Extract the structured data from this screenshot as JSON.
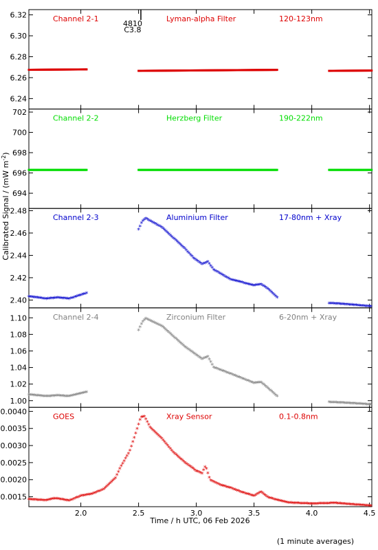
{
  "figure": {
    "ylabel": "Calibrated Signal / (mW m",
    "ylabel_sup": "-2",
    "ylabel_end": ")",
    "xlabel": "Time / h UTC, 06 Feb 2026",
    "footnote": "(1 minute averages)",
    "marker_top": "4810",
    "marker_bottom": "C3.8",
    "marker_x": 2.52
  },
  "chart_data": [
    {
      "type": "scatter",
      "channel": "Channel 2-1",
      "filter": "Lyman-alpha Filter",
      "band": "120-123nm",
      "color": "#dd0000",
      "marker": "dot",
      "shape": "flat",
      "xlim": [
        1.55,
        4.52
      ],
      "ylim": [
        6.23,
        6.325
      ],
      "yticks": [
        6.24,
        6.26,
        6.28,
        6.3,
        6.32
      ],
      "ydecimals": 2,
      "segments": [
        [
          1.55,
          2.05
        ],
        [
          2.5,
          3.7
        ],
        [
          4.15,
          4.52
        ]
      ],
      "levels": [
        6.2675,
        6.2665,
        6.2665
      ],
      "slope": 0.0008
    },
    {
      "type": "scatter",
      "channel": "Channel 2-2",
      "filter": "Herzberg Filter",
      "band": "190-222nm",
      "color": "#00dd00",
      "marker": "dot",
      "shape": "flat",
      "xlim": [
        1.55,
        4.52
      ],
      "ylim": [
        692.5,
        702.3
      ],
      "yticks": [
        694,
        696,
        698,
        700,
        702
      ],
      "ydecimals": 0,
      "segments": [
        [
          1.55,
          2.05
        ],
        [
          2.5,
          3.7
        ],
        [
          4.15,
          4.52
        ]
      ],
      "levels": [
        696.3,
        696.3,
        696.3
      ],
      "slope": 0
    },
    {
      "type": "scatter",
      "channel": "Channel 2-3",
      "filter": "Aluminium Filter",
      "band": "17-80nm + Xray",
      "color": "#0000cc",
      "marker": "star",
      "shape": "flare",
      "xlim": [
        1.55,
        4.52
      ],
      "ylim": [
        2.393,
        2.482
      ],
      "yticks": [
        2.4,
        2.42,
        2.44,
        2.46,
        2.48
      ],
      "ydecimals": 2,
      "segments": [
        [
          1.55,
          2.05
        ],
        [
          2.5,
          3.7
        ],
        [
          4.15,
          4.52
        ]
      ],
      "pre": [
        [
          1.55,
          2.403
        ],
        [
          1.7,
          2.401
        ],
        [
          1.8,
          2.402
        ],
        [
          1.9,
          2.401
        ],
        [
          2.05,
          2.406
        ]
      ],
      "flare": [
        [
          2.5,
          2.463
        ],
        [
          2.53,
          2.47
        ],
        [
          2.56,
          2.473
        ],
        [
          2.7,
          2.465
        ],
        [
          2.9,
          2.446
        ],
        [
          2.98,
          2.437
        ],
        [
          3.05,
          2.432
        ],
        [
          3.1,
          2.434
        ],
        [
          3.15,
          2.427
        ],
        [
          3.3,
          2.418
        ],
        [
          3.5,
          2.413
        ],
        [
          3.56,
          2.414
        ],
        [
          3.62,
          2.41
        ],
        [
          3.7,
          2.402
        ]
      ],
      "post": [
        [
          4.15,
          2.397
        ],
        [
          4.3,
          2.396
        ],
        [
          4.52,
          2.394
        ]
      ]
    },
    {
      "type": "scatter",
      "channel": "Channel 2-4",
      "filter": "Zirconium Filter",
      "band": "6-20nm + Xray",
      "color": "#808080",
      "marker": "star",
      "shape": "flare",
      "xlim": [
        1.55,
        4.52
      ],
      "ylim": [
        0.992,
        1.112
      ],
      "yticks": [
        1.0,
        1.02,
        1.04,
        1.06,
        1.08,
        1.1
      ],
      "ydecimals": 2,
      "segments": [
        [
          1.55,
          2.05
        ],
        [
          2.5,
          3.7
        ],
        [
          4.15,
          4.52
        ]
      ],
      "pre": [
        [
          1.55,
          1.007
        ],
        [
          1.7,
          1.005
        ],
        [
          1.8,
          1.006
        ],
        [
          1.9,
          1.005
        ],
        [
          2.05,
          1.01
        ]
      ],
      "flare": [
        [
          2.5,
          1.085
        ],
        [
          2.53,
          1.094
        ],
        [
          2.56,
          1.099
        ],
        [
          2.7,
          1.09
        ],
        [
          2.9,
          1.065
        ],
        [
          2.98,
          1.057
        ],
        [
          3.05,
          1.05
        ],
        [
          3.1,
          1.053
        ],
        [
          3.15,
          1.04
        ],
        [
          3.3,
          1.032
        ],
        [
          3.5,
          1.021
        ],
        [
          3.56,
          1.022
        ],
        [
          3.62,
          1.015
        ],
        [
          3.7,
          1.005
        ]
      ],
      "post": [
        [
          4.15,
          0.998
        ],
        [
          4.3,
          0.997
        ],
        [
          4.52,
          0.995
        ]
      ]
    },
    {
      "type": "scatter",
      "channel": "GOES",
      "filter": "Xray Sensor",
      "band": "0.1-0.8nm",
      "color": "#dd0000",
      "marker": "star",
      "shape": "continuous",
      "xlim": [
        1.55,
        4.52
      ],
      "ylim": [
        0.00121,
        0.00412
      ],
      "yticks": [
        0.0015,
        0.002,
        0.0025,
        0.003,
        0.0035,
        0.004
      ],
      "ydecimals": 4,
      "xticks": [
        2.0,
        2.5,
        3.0,
        3.5,
        4.0,
        4.5
      ],
      "xdecimals": 1,
      "curve": [
        [
          1.55,
          0.00142
        ],
        [
          1.7,
          0.00139
        ],
        [
          1.78,
          0.00145
        ],
        [
          1.9,
          0.00138
        ],
        [
          2.0,
          0.00152
        ],
        [
          2.1,
          0.00158
        ],
        [
          2.2,
          0.00172
        ],
        [
          2.3,
          0.00205
        ],
        [
          2.35,
          0.0024
        ],
        [
          2.42,
          0.0028
        ],
        [
          2.47,
          0.0033
        ],
        [
          2.52,
          0.00382
        ],
        [
          2.55,
          0.00385
        ],
        [
          2.6,
          0.00352
        ],
        [
          2.7,
          0.0032
        ],
        [
          2.8,
          0.0028
        ],
        [
          2.9,
          0.0025
        ],
        [
          3.0,
          0.00225
        ],
        [
          3.05,
          0.00218
        ],
        [
          3.08,
          0.0024
        ],
        [
          3.12,
          0.00198
        ],
        [
          3.2,
          0.00185
        ],
        [
          3.3,
          0.00175
        ],
        [
          3.4,
          0.00162
        ],
        [
          3.5,
          0.00152
        ],
        [
          3.56,
          0.00164
        ],
        [
          3.62,
          0.00148
        ],
        [
          3.7,
          0.0014
        ],
        [
          3.8,
          0.00132
        ],
        [
          4.0,
          0.00129
        ],
        [
          4.2,
          0.00131
        ],
        [
          4.35,
          0.00127
        ],
        [
          4.52,
          0.00123
        ]
      ]
    }
  ]
}
